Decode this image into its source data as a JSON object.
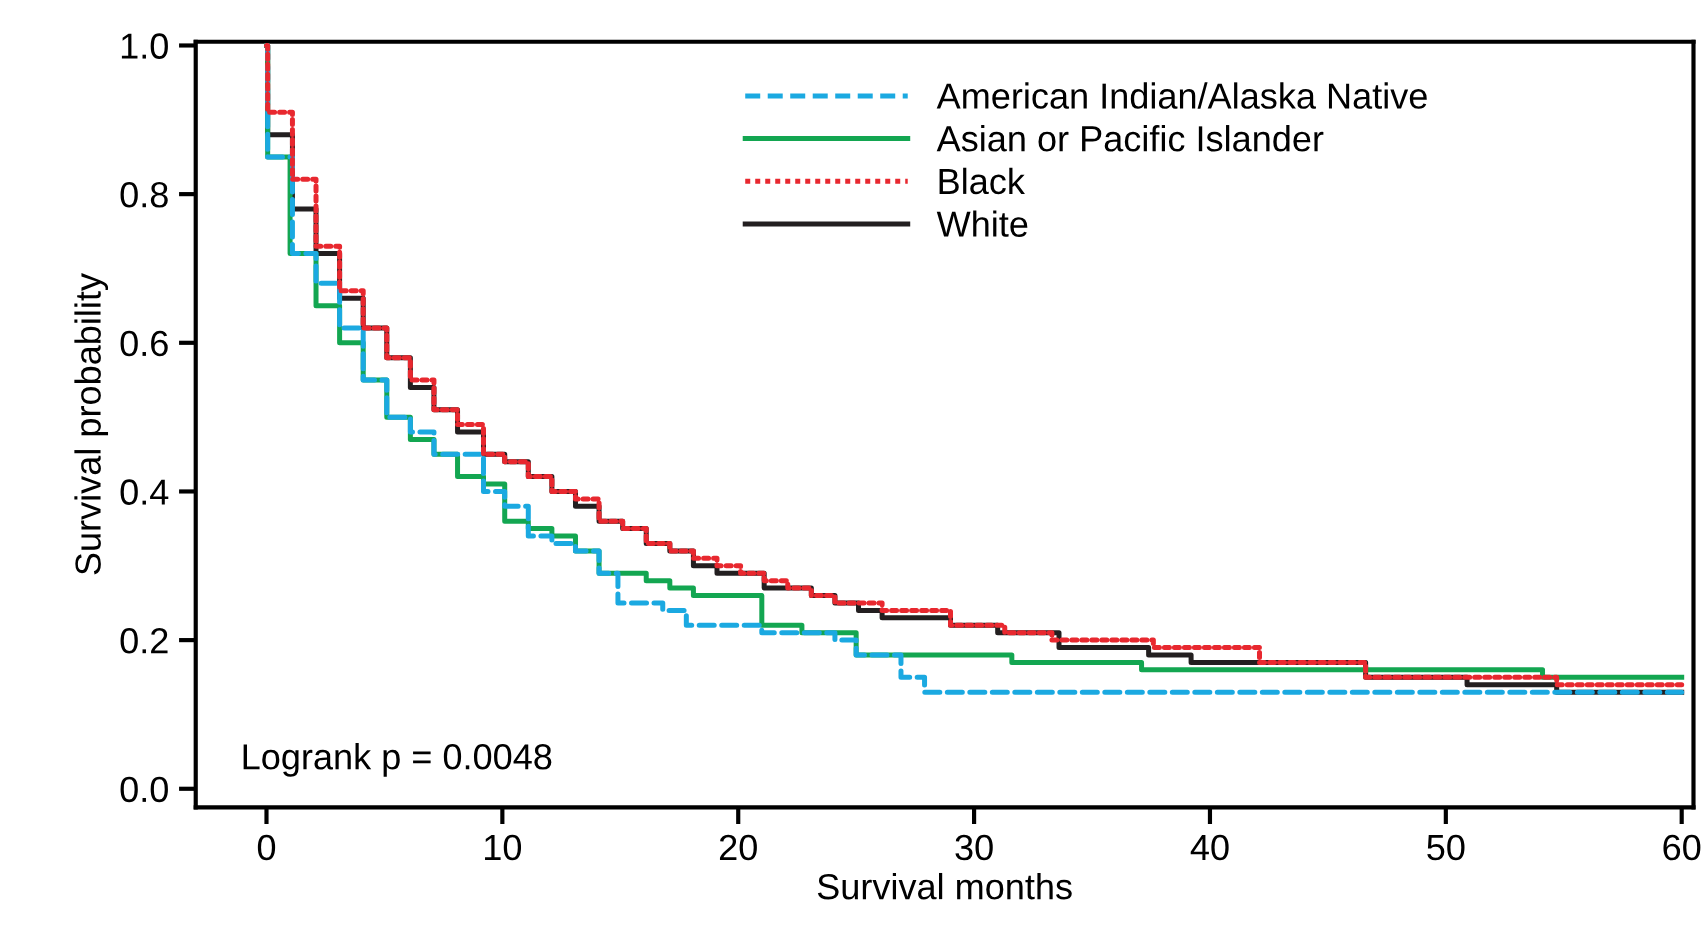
{
  "chart_data": {
    "type": "step",
    "xlabel": "Survival months",
    "ylabel": "Survival probability",
    "xlim": [
      -3,
      60.5
    ],
    "ylim": [
      -0.025,
      1.005
    ],
    "xticks": [
      0,
      10,
      20,
      30,
      40,
      50,
      60
    ],
    "yticks": [
      {
        "value": 0,
        "label": "0.0"
      },
      {
        "value": 0.2,
        "label": "0.2"
      },
      {
        "value": 0.4,
        "label": "0.4"
      },
      {
        "value": 0.6,
        "label": "0.6"
      },
      {
        "value": 0.8,
        "label": "0.8"
      },
      {
        "value": 1.0,
        "label": "1.0"
      }
    ],
    "grid": false,
    "legend": "top",
    "marker": "none",
    "annotations": [
      "Logrank p = 0.0048"
    ],
    "series": [
      {
        "name": "American Indian/Alaska Native",
        "color": "#1ba9e1",
        "line_style": "dashed",
        "x": [
          0,
          0.05,
          1.1,
          2.1,
          3.1,
          4.1,
          5.1,
          6.1,
          7.1,
          9.2,
          10.1,
          11.1,
          12.1,
          13.1,
          14.1,
          14.9,
          16.8,
          17.8,
          21,
          24.1,
          25,
          26.9,
          27.9,
          60
        ],
        "values": [
          1.0,
          0.85,
          0.72,
          0.68,
          0.62,
          0.55,
          0.5,
          0.48,
          0.45,
          0.4,
          0.38,
          0.34,
          0.33,
          0.32,
          0.29,
          0.25,
          0.24,
          0.22,
          0.21,
          0.2,
          0.18,
          0.15,
          0.13,
          0.13
        ]
      },
      {
        "name": "Asian or Pacific Islander",
        "color": "#13a651",
        "line_style": "solid",
        "x": [
          0,
          0.05,
          1.0,
          2.1,
          3.1,
          4.1,
          5.1,
          6.1,
          7.1,
          8.1,
          9.2,
          10.1,
          11.1,
          12.1,
          13.1,
          14.1,
          16.1,
          17.1,
          18.1,
          21,
          22.7,
          25,
          29.3,
          31.6,
          37.1,
          54.1,
          60
        ],
        "values": [
          1.0,
          0.85,
          0.72,
          0.65,
          0.6,
          0.55,
          0.5,
          0.47,
          0.45,
          0.42,
          0.41,
          0.36,
          0.35,
          0.34,
          0.32,
          0.29,
          0.28,
          0.27,
          0.26,
          0.22,
          0.21,
          0.18,
          0.18,
          0.17,
          0.16,
          0.15,
          0.15
        ]
      },
      {
        "name": "Black",
        "color": "#e8282f",
        "line_style": "dotted",
        "x": [
          0,
          0.05,
          1.1,
          2.1,
          3.1,
          4.1,
          5.1,
          6.1,
          7.1,
          8.1,
          9.2,
          10.1,
          11.1,
          12.1,
          13.1,
          14.1,
          15.1,
          16.1,
          17.1,
          18.1,
          19.1,
          20.1,
          21.1,
          22.1,
          23.1,
          24.1,
          25.1,
          26.1,
          29,
          31.3,
          33.3,
          37.6,
          42.1,
          46.6,
          54.7,
          60
        ],
        "values": [
          1.0,
          0.91,
          0.82,
          0.73,
          0.67,
          0.62,
          0.58,
          0.55,
          0.51,
          0.49,
          0.45,
          0.44,
          0.42,
          0.4,
          0.39,
          0.36,
          0.35,
          0.33,
          0.32,
          0.31,
          0.3,
          0.29,
          0.28,
          0.27,
          0.26,
          0.25,
          0.25,
          0.24,
          0.22,
          0.21,
          0.2,
          0.19,
          0.17,
          0.15,
          0.14,
          0.14
        ]
      },
      {
        "name": "White",
        "color": "#231f20",
        "line_style": "solid",
        "x": [
          0,
          0.05,
          1.1,
          2.1,
          3.1,
          4.1,
          5.1,
          6.1,
          7.1,
          8.1,
          9.2,
          10.1,
          11.1,
          12.1,
          13.1,
          14.1,
          15.1,
          16.1,
          17.1,
          18.1,
          19.1,
          20.1,
          21.1,
          22.1,
          23.1,
          24.1,
          25.1,
          26.1,
          29,
          31,
          33.6,
          35.1,
          37.4,
          39.2,
          41.2,
          46.6,
          50.9,
          54.7,
          60
        ],
        "values": [
          1.0,
          0.88,
          0.78,
          0.72,
          0.66,
          0.62,
          0.58,
          0.54,
          0.51,
          0.48,
          0.45,
          0.44,
          0.42,
          0.4,
          0.38,
          0.36,
          0.35,
          0.33,
          0.32,
          0.3,
          0.29,
          0.29,
          0.27,
          0.27,
          0.26,
          0.25,
          0.24,
          0.23,
          0.22,
          0.21,
          0.19,
          0.19,
          0.18,
          0.17,
          0.17,
          0.15,
          0.14,
          0.13,
          0.13
        ]
      }
    ]
  }
}
